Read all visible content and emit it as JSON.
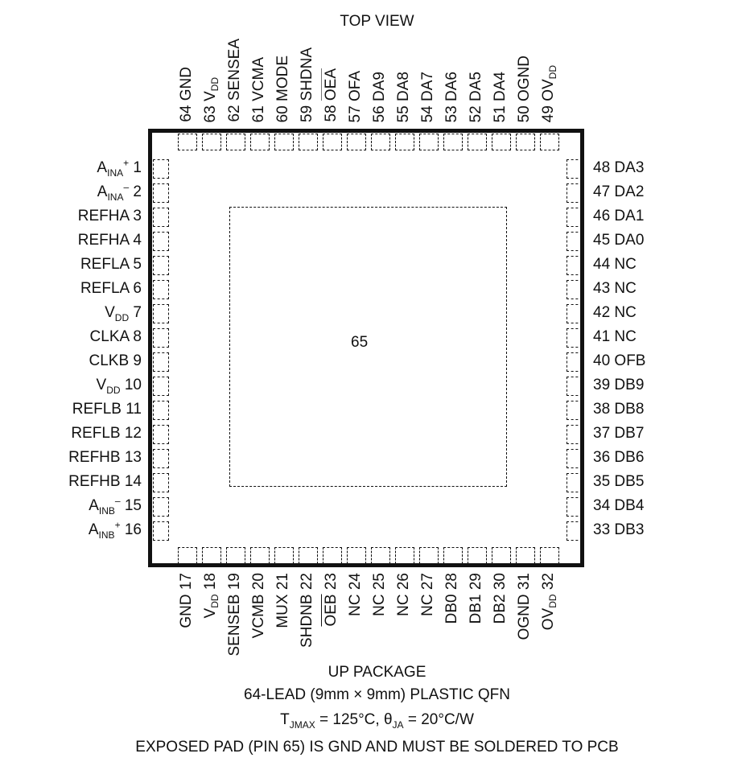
{
  "title": "TOP VIEW",
  "exposed_pad_number": "65",
  "pins": {
    "top": [
      {
        "num": "64",
        "name": "GND"
      },
      {
        "num": "63",
        "name": "V",
        "sub": "DD"
      },
      {
        "num": "62",
        "name": "SENSEA"
      },
      {
        "num": "61",
        "name": "VCMA"
      },
      {
        "num": "60",
        "name": "MODE"
      },
      {
        "num": "59",
        "name": "SHDNA"
      },
      {
        "num": "58",
        "name": "OEA",
        "overline": true
      },
      {
        "num": "57",
        "name": "OFA"
      },
      {
        "num": "56",
        "name": "DA9"
      },
      {
        "num": "55",
        "name": "DA8"
      },
      {
        "num": "54",
        "name": "DA7"
      },
      {
        "num": "53",
        "name": "DA6"
      },
      {
        "num": "52",
        "name": "DA5"
      },
      {
        "num": "51",
        "name": "DA4"
      },
      {
        "num": "50",
        "name": "OGND"
      },
      {
        "num": "49",
        "name": "OV",
        "sub": "DD"
      }
    ],
    "left": [
      {
        "num": "1",
        "name": "A",
        "sub": "INA",
        "sup": "+"
      },
      {
        "num": "2",
        "name": "A",
        "sub": "INA",
        "sup": "–"
      },
      {
        "num": "3",
        "name": "REFHA"
      },
      {
        "num": "4",
        "name": "REFHA"
      },
      {
        "num": "5",
        "name": "REFLA"
      },
      {
        "num": "6",
        "name": "REFLA"
      },
      {
        "num": "7",
        "name": "V",
        "sub": "DD"
      },
      {
        "num": "8",
        "name": "CLKA"
      },
      {
        "num": "9",
        "name": "CLKB"
      },
      {
        "num": "10",
        "name": "V",
        "sub": "DD"
      },
      {
        "num": "11",
        "name": "REFLB"
      },
      {
        "num": "12",
        "name": "REFLB"
      },
      {
        "num": "13",
        "name": "REFHB"
      },
      {
        "num": "14",
        "name": "REFHB"
      },
      {
        "num": "15",
        "name": "A",
        "sub": "INB",
        "sup": "–"
      },
      {
        "num": "16",
        "name": "A",
        "sub": "INB",
        "sup": "+"
      }
    ],
    "bottom": [
      {
        "num": "17",
        "name": "GND"
      },
      {
        "num": "18",
        "name": "V",
        "sub": "DD"
      },
      {
        "num": "19",
        "name": "SENSEB"
      },
      {
        "num": "20",
        "name": "VCMB"
      },
      {
        "num": "21",
        "name": "MUX"
      },
      {
        "num": "22",
        "name": "SHDNB"
      },
      {
        "num": "23",
        "name": "OEB",
        "overline": true
      },
      {
        "num": "24",
        "name": "NC"
      },
      {
        "num": "25",
        "name": "NC"
      },
      {
        "num": "26",
        "name": "NC"
      },
      {
        "num": "27",
        "name": "NC"
      },
      {
        "num": "28",
        "name": "DB0"
      },
      {
        "num": "29",
        "name": "DB1"
      },
      {
        "num": "30",
        "name": "DB2"
      },
      {
        "num": "31",
        "name": "OGND"
      },
      {
        "num": "32",
        "name": "OV",
        "sub": "DD"
      }
    ],
    "right": [
      {
        "num": "48",
        "name": "DA3"
      },
      {
        "num": "47",
        "name": "DA2"
      },
      {
        "num": "46",
        "name": "DA1"
      },
      {
        "num": "45",
        "name": "DA0"
      },
      {
        "num": "44",
        "name": "NC"
      },
      {
        "num": "43",
        "name": "NC"
      },
      {
        "num": "42",
        "name": "NC"
      },
      {
        "num": "41",
        "name": "NC"
      },
      {
        "num": "40",
        "name": "OFB"
      },
      {
        "num": "39",
        "name": "DB9"
      },
      {
        "num": "38",
        "name": "DB8"
      },
      {
        "num": "37",
        "name": "DB7"
      },
      {
        "num": "36",
        "name": "DB6"
      },
      {
        "num": "35",
        "name": "DB5"
      },
      {
        "num": "34",
        "name": "DB4"
      },
      {
        "num": "33",
        "name": "DB3"
      }
    ]
  },
  "caption": {
    "package": "UP PACKAGE",
    "lead": "64-LEAD (9mm × 9mm) PLASTIC QFN",
    "thermal_t": "T",
    "thermal_t_sub": "JMAX",
    "thermal_rest1": " = 125°C, θ",
    "thermal_theta_sub": "JA",
    "thermal_rest2": " = 20°C/W",
    "note": "EXPOSED PAD (PIN 65) IS GND AND MUST BE SOLDERED TO PCB"
  }
}
